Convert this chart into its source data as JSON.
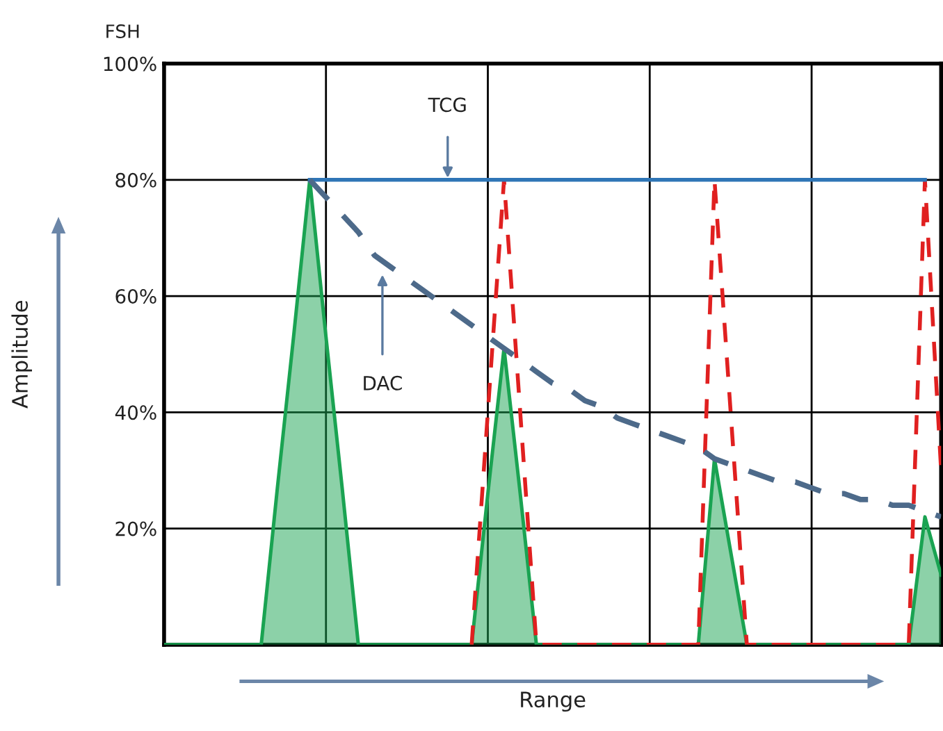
{
  "chart_data": {
    "type": "line",
    "ylabel": "Amplitude",
    "xlabel": "Range",
    "categories": [
      null,
      null,
      null,
      null,
      null,
      null,
      null,
      null,
      null,
      null,
      null,
      null,
      null,
      null,
      null,
      null,
      null,
      null,
      null,
      null,
      null,
      null,
      null,
      null,
      null,
      null,
      null,
      null,
      null,
      null,
      null,
      null,
      null,
      null,
      null,
      null,
      null,
      null,
      null,
      null,
      null,
      null,
      null,
      null,
      null,
      null,
      null,
      null,
      null
    ],
    "ylim": [
      0,
      100
    ],
    "yticks": [
      {
        "value": 20,
        "label": "20%"
      },
      {
        "value": 40,
        "label": "40%"
      },
      {
        "value": 60,
        "label": "60%"
      },
      {
        "value": 80,
        "label": "80%"
      },
      {
        "value": 100,
        "label": "100%"
      }
    ],
    "tick_labels": "y",
    "grid": true,
    "series": [
      {
        "type": "area",
        "color": "#1aa352",
        "values": [
          0,
          0,
          0,
          0,
          0,
          0,
          0,
          27,
          53,
          80,
          53,
          27,
          0,
          0,
          0,
          0,
          0,
          0,
          0,
          0,
          26,
          51,
          26,
          0,
          0,
          0,
          0,
          0,
          0,
          0,
          0,
          0,
          0,
          0,
          32,
          16,
          0,
          0,
          0,
          0,
          0,
          0,
          0,
          0,
          0,
          0,
          0,
          22,
          12
        ]
      },
      {
        "color": "#e02020",
        "line_style": "dashed",
        "values": [
          null,
          null,
          null,
          null,
          null,
          null,
          null,
          null,
          null,
          null,
          null,
          null,
          null,
          null,
          null,
          null,
          null,
          null,
          null,
          0,
          40,
          80,
          40,
          0,
          0,
          0,
          0,
          0,
          0,
          0,
          0,
          0,
          0,
          0,
          80,
          40,
          0,
          0,
          0,
          0,
          0,
          0,
          0,
          0,
          0,
          0,
          0,
          80,
          30
        ]
      },
      {
        "color": "#2e75b6",
        "line_style": "solid",
        "values": [
          null,
          null,
          null,
          null,
          null,
          null,
          null,
          null,
          null,
          80,
          80,
          80,
          80,
          80,
          80,
          80,
          80,
          80,
          80,
          80,
          80,
          80,
          80,
          80,
          80,
          80,
          80,
          80,
          80,
          80,
          80,
          80,
          80,
          80,
          80,
          80,
          80,
          80,
          80,
          80,
          80,
          80,
          80,
          80,
          80,
          80,
          80,
          80,
          null
        ]
      },
      {
        "color": "#4d6a8a",
        "line_style": "dashed",
        "values": [
          null,
          null,
          null,
          null,
          null,
          null,
          null,
          null,
          null,
          80,
          77,
          74,
          71,
          67,
          65,
          63,
          61,
          59,
          57,
          55,
          53,
          51,
          49,
          47,
          45,
          44,
          42,
          41,
          39,
          38,
          37,
          36,
          35,
          34,
          32,
          31,
          30,
          29,
          28,
          28,
          27,
          26,
          26,
          25,
          25,
          24,
          24,
          23,
          22
        ]
      }
    ],
    "annotations": [
      "TCG",
      "DAC",
      "FSH"
    ]
  }
}
